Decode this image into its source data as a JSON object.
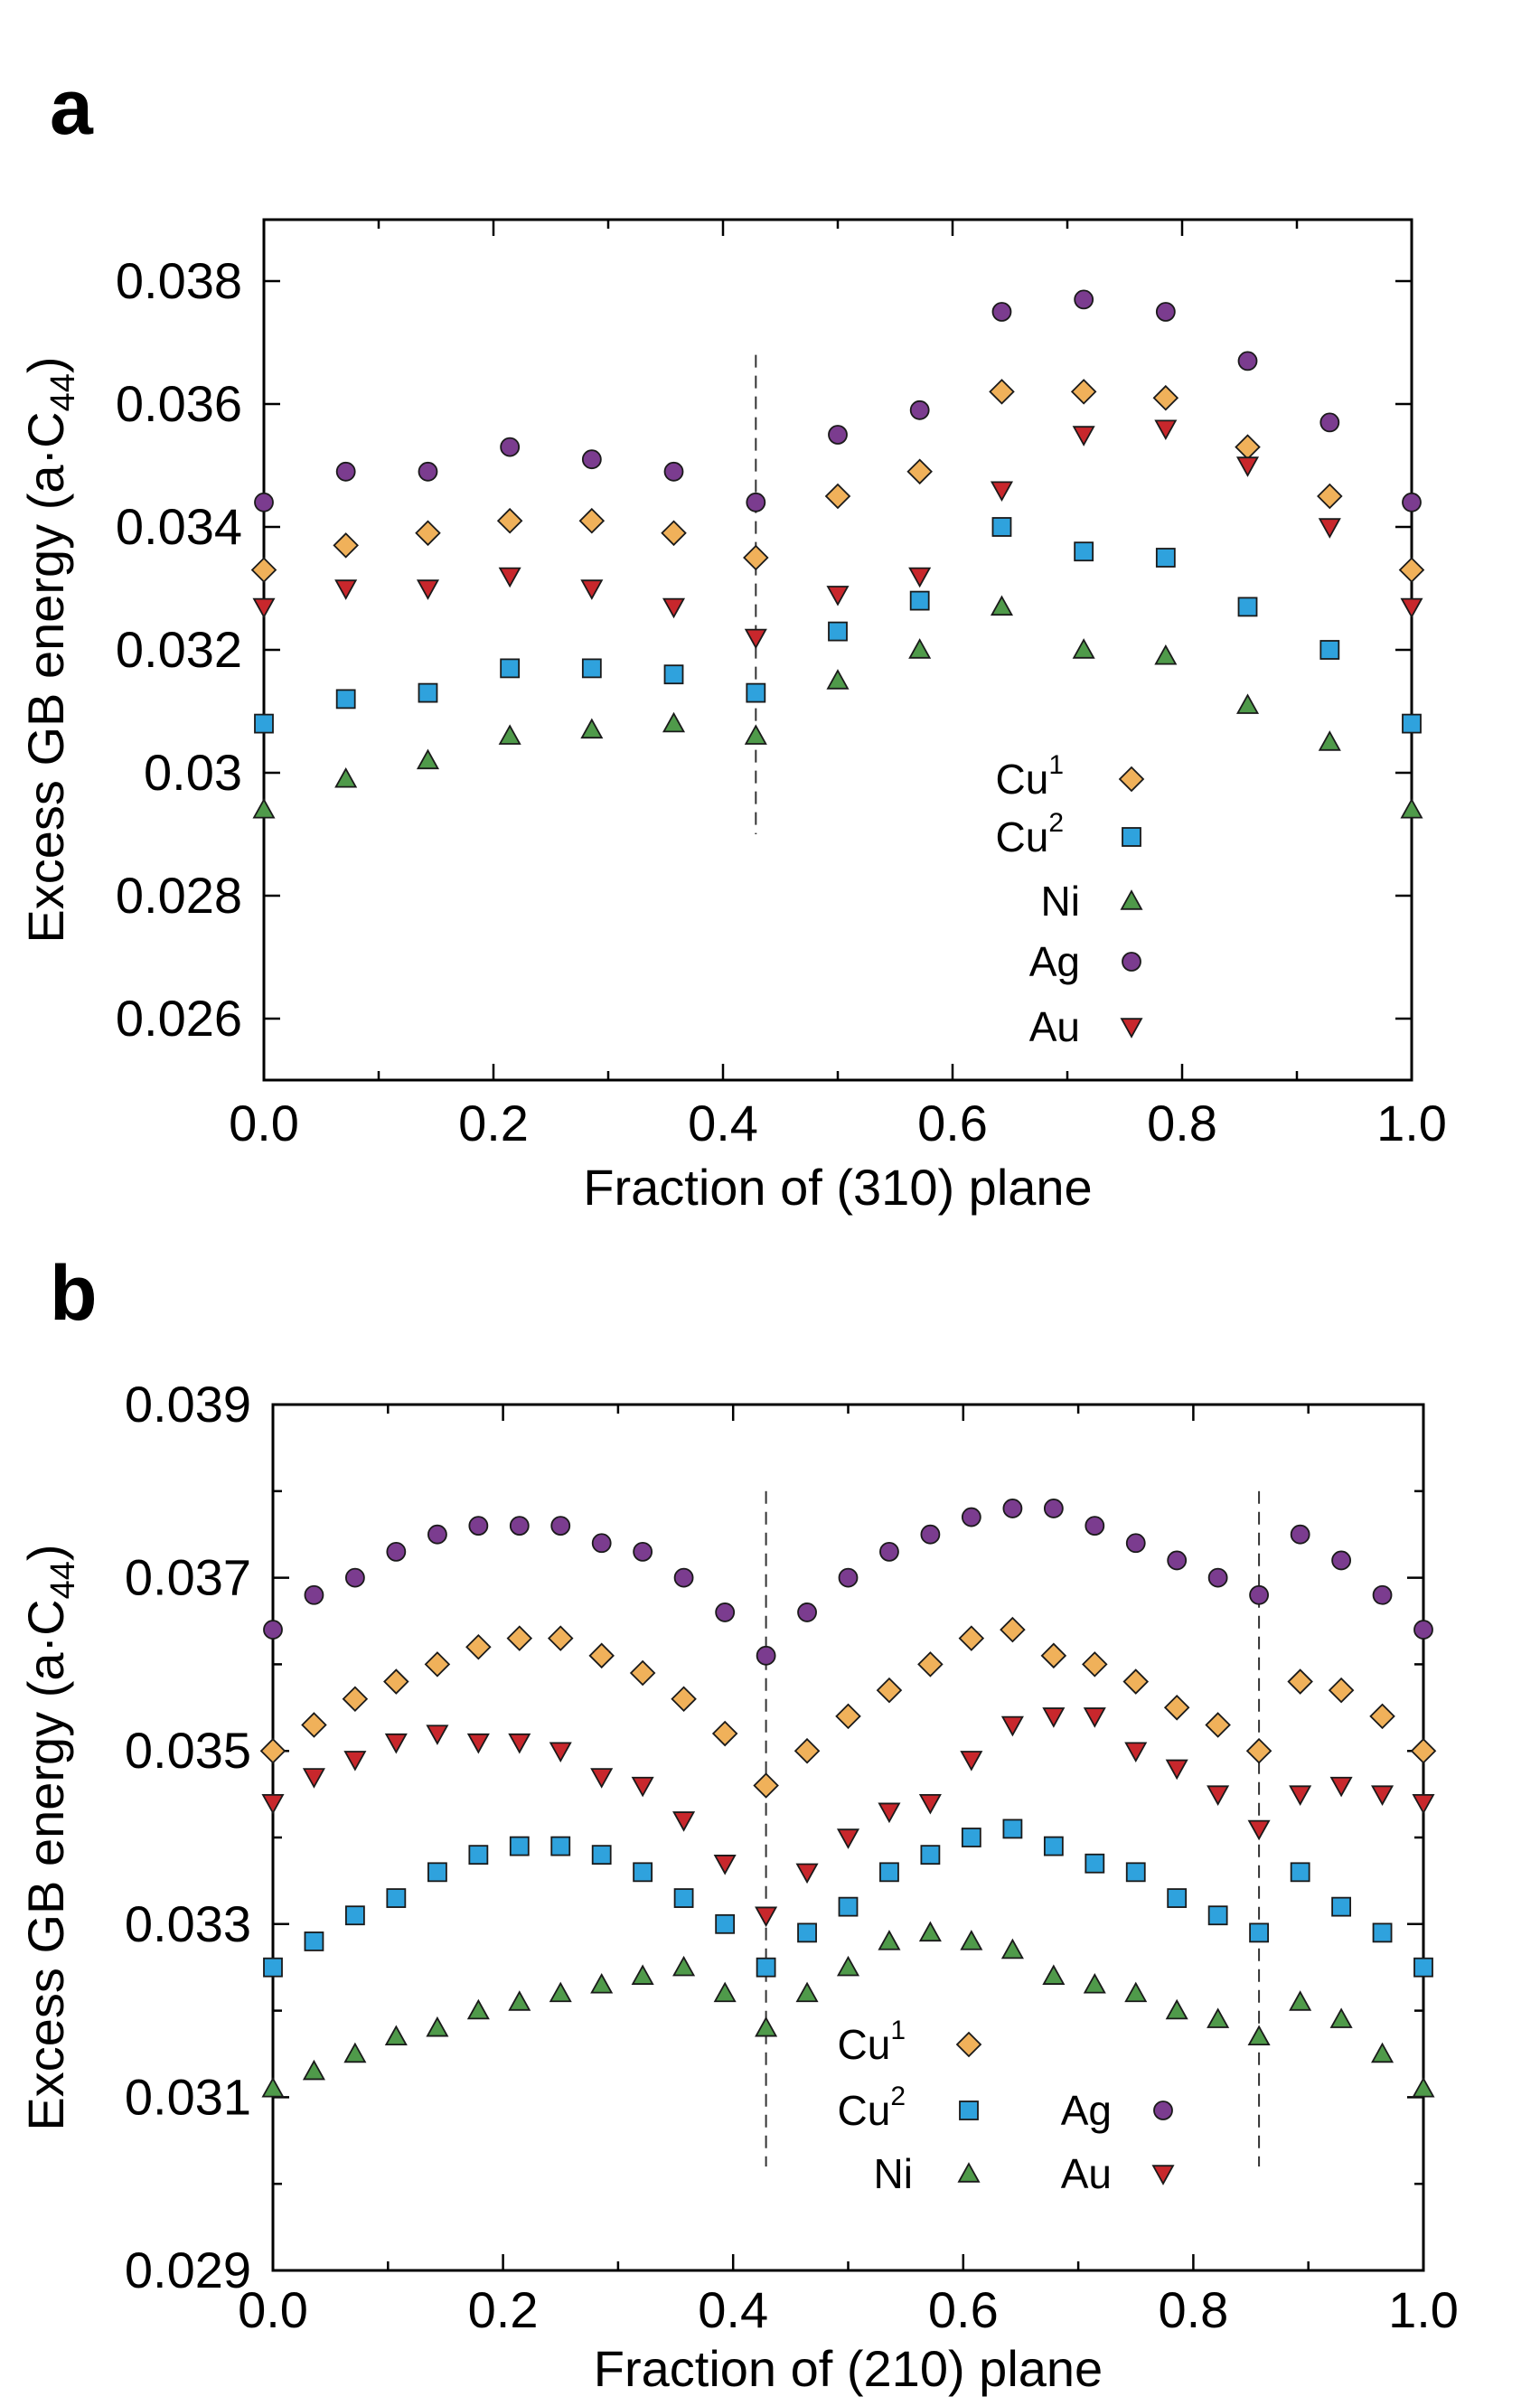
{
  "chart_data": [
    {
      "panel": "a",
      "type": "scatter",
      "xlabel": "Fraction of (310) plane",
      "ylabel": "Excess GB energy (a·C",
      "ylabel_sub": "44",
      "ylabel_end": ")",
      "xlim": [
        0,
        1
      ],
      "ylim": [
        0.025,
        0.039
      ],
      "x_ticks": [
        0.0,
        0.2,
        0.4,
        0.6,
        0.8,
        1.0
      ],
      "x_tick_labels": [
        "0.0",
        "0.2",
        "0.4",
        "0.6",
        "0.8",
        "1.0"
      ],
      "y_ticks": [
        0.026,
        0.028,
        0.03,
        0.032,
        0.034,
        0.036,
        0.038
      ],
      "y_tick_labels": [
        "0.026",
        "0.028",
        "0.03",
        "0.032",
        "0.034",
        "0.036",
        "0.038"
      ],
      "minor_x_ticks": [
        0.1,
        0.3,
        0.5,
        0.7,
        0.9
      ],
      "dividers": [
        0.4286
      ],
      "x": [
        0,
        0.0714,
        0.1429,
        0.2143,
        0.2857,
        0.3571,
        0.4286,
        0.5,
        0.5714,
        0.6429,
        0.7143,
        0.7857,
        0.8571,
        0.9286,
        1.0
      ],
      "series": [
        {
          "name": "Cu",
          "sup": "1",
          "marker": "diamond",
          "color": "#f0b15a",
          "values": [
            0.0333,
            0.0337,
            0.0339,
            0.0341,
            0.0341,
            0.0339,
            0.0335,
            0.0345,
            0.0349,
            0.0362,
            0.0362,
            0.0361,
            0.0353,
            0.0345,
            0.0333
          ]
        },
        {
          "name": "Cu",
          "sup": "2",
          "marker": "square",
          "color": "#2fa2dd",
          "values": [
            0.0308,
            0.0312,
            0.0313,
            0.0317,
            0.0317,
            0.0316,
            0.0313,
            0.0323,
            0.0328,
            0.034,
            0.0336,
            0.0335,
            0.0327,
            0.032,
            0.0308
          ]
        },
        {
          "name": "Ni",
          "sup": "",
          "marker": "triangle-up",
          "color": "#4f9a4a",
          "values": [
            0.0294,
            0.0299,
            0.0302,
            0.0306,
            0.0307,
            0.0308,
            0.0306,
            0.0315,
            0.032,
            0.0327,
            0.032,
            0.0319,
            0.0311,
            0.0305,
            0.0294
          ]
        },
        {
          "name": "Ag",
          "sup": "",
          "marker": "circle",
          "color": "#7b3c8f",
          "values": [
            0.0344,
            0.0349,
            0.0349,
            0.0353,
            0.0351,
            0.0349,
            0.0344,
            0.0355,
            0.0359,
            0.0375,
            0.0377,
            0.0375,
            0.0367,
            0.0357,
            0.0344
          ]
        },
        {
          "name": "Au",
          "sup": "",
          "marker": "triangle-down",
          "color": "#c8272c",
          "values": [
            0.0327,
            0.033,
            0.033,
            0.0332,
            0.033,
            0.0327,
            0.0322,
            0.0329,
            0.0332,
            0.0346,
            0.0355,
            0.0356,
            0.035,
            0.034,
            0.0327
          ]
        }
      ],
      "legend": "bottom-right"
    },
    {
      "panel": "b",
      "type": "scatter",
      "xlabel": "Fraction of (210) plane",
      "ylabel": "Excess GB energy (a·C",
      "ylabel_sub": "44",
      "ylabel_end": ")",
      "xlim": [
        0,
        1
      ],
      "ylim": [
        0.029,
        0.039
      ],
      "x_ticks": [
        0.0,
        0.2,
        0.4,
        0.6,
        0.8,
        1.0
      ],
      "x_tick_labels": [
        "0.0",
        "0.2",
        "0.4",
        "0.6",
        "0.8",
        "1.0"
      ],
      "y_ticks": [
        0.029,
        0.031,
        0.033,
        0.035,
        0.037,
        0.039
      ],
      "y_tick_labels": [
        "0.029",
        "0.031",
        "0.033",
        "0.035",
        "0.037",
        "0.039"
      ],
      "minor_y_ticks": [
        0.03,
        0.032,
        0.034,
        0.036,
        0.038
      ],
      "minor_x_ticks": [
        0.1,
        0.3,
        0.5,
        0.7,
        0.9
      ],
      "dividers": [
        0.4286,
        0.8571
      ],
      "x": [
        0,
        0.0357,
        0.0714,
        0.1071,
        0.1429,
        0.1786,
        0.2143,
        0.25,
        0.2857,
        0.3214,
        0.3571,
        0.3929,
        0.4286,
        0.4643,
        0.5,
        0.5357,
        0.5714,
        0.6071,
        0.6429,
        0.6786,
        0.7143,
        0.75,
        0.7857,
        0.8214,
        0.8571,
        0.8929,
        0.9286,
        0.9643,
        1.0
      ],
      "series": [
        {
          "name": "Cu",
          "sup": "1",
          "marker": "diamond",
          "color": "#f0b15a",
          "values": [
            0.035,
            0.0353,
            0.0356,
            0.0358,
            0.036,
            0.0362,
            0.0363,
            0.0363,
            0.0361,
            0.0359,
            0.0356,
            0.0352,
            0.0346,
            0.035,
            0.0354,
            0.0357,
            0.036,
            0.0363,
            0.0364,
            0.0361,
            0.036,
            0.0358,
            0.0355,
            0.0353,
            0.035,
            0.0358,
            0.0357,
            0.0354,
            0.035
          ]
        },
        {
          "name": "Cu",
          "sup": "2",
          "marker": "square",
          "color": "#2fa2dd",
          "values": [
            0.0325,
            0.0328,
            0.0331,
            0.0333,
            0.0336,
            0.0338,
            0.0339,
            0.0339,
            0.0338,
            0.0336,
            0.0333,
            0.033,
            0.0325,
            0.0329,
            0.0332,
            0.0336,
            0.0338,
            0.034,
            0.0341,
            0.0339,
            0.0337,
            0.0336,
            0.0333,
            0.0331,
            0.0329,
            0.0336,
            0.0332,
            0.0329,
            0.0325
          ]
        },
        {
          "name": "Ni",
          "sup": "",
          "marker": "triangle-up",
          "color": "#4f9a4a",
          "values": [
            0.0311,
            0.0313,
            0.0315,
            0.0317,
            0.0318,
            0.032,
            0.0321,
            0.0322,
            0.0323,
            0.0324,
            0.0325,
            0.0322,
            0.0318,
            0.0322,
            0.0325,
            0.0328,
            0.0329,
            0.0328,
            0.0327,
            0.0324,
            0.0323,
            0.0322,
            0.032,
            0.0319,
            0.0317,
            0.0321,
            0.0319,
            0.0315,
            0.0311
          ]
        },
        {
          "name": "Ag",
          "sup": "",
          "marker": "circle",
          "color": "#7b3c8f",
          "values": [
            0.0364,
            0.0368,
            0.037,
            0.0373,
            0.0375,
            0.0376,
            0.0376,
            0.0376,
            0.0374,
            0.0373,
            0.037,
            0.0366,
            0.0361,
            0.0366,
            0.037,
            0.0373,
            0.0375,
            0.0377,
            0.0378,
            0.0378,
            0.0376,
            0.0374,
            0.0372,
            0.037,
            0.0368,
            0.0375,
            0.0372,
            0.0368,
            0.0364
          ]
        },
        {
          "name": "Au",
          "sup": "",
          "marker": "triangle-down",
          "color": "#c8272c",
          "values": [
            0.0344,
            0.0347,
            0.0349,
            0.0351,
            0.0352,
            0.0351,
            0.0351,
            0.035,
            0.0347,
            0.0346,
            0.0342,
            0.0337,
            0.0331,
            0.0336,
            0.034,
            0.0343,
            0.0344,
            0.0349,
            0.0353,
            0.0354,
            0.0354,
            0.035,
            0.0348,
            0.0345,
            0.0341,
            0.0345,
            0.0346,
            0.0345,
            0.0344
          ]
        }
      ],
      "legend": "bottom-center"
    }
  ]
}
